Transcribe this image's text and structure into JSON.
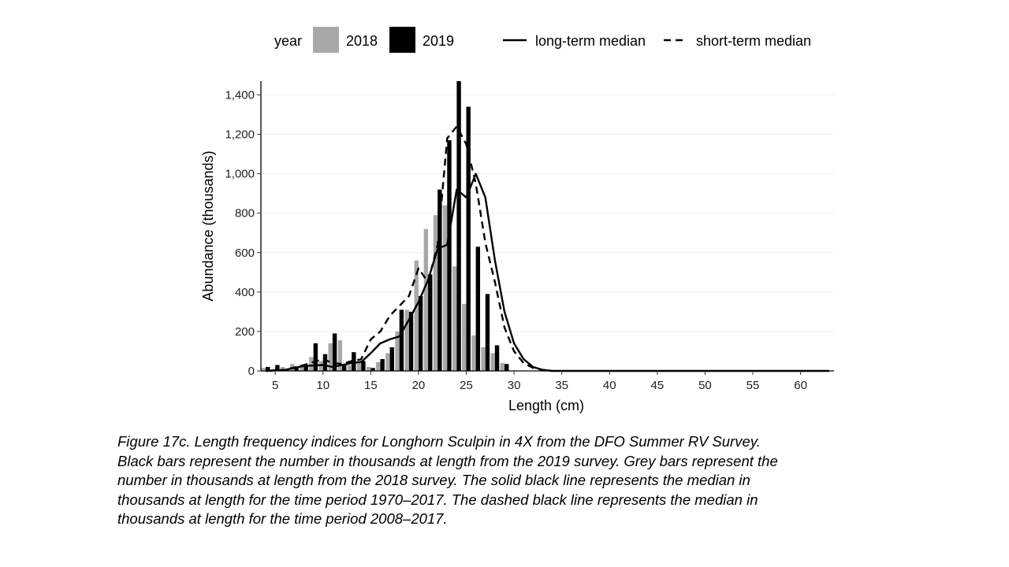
{
  "chart_data": {
    "type": "bar",
    "title": "",
    "xlabel": "Length (cm)",
    "ylabel": "Abundance (thousands)",
    "xlim": [
      3.5,
      63.5
    ],
    "ylim": [
      0,
      1470
    ],
    "x_ticks": [
      5,
      10,
      15,
      20,
      25,
      30,
      35,
      40,
      45,
      50,
      55,
      60
    ],
    "y_ticks": [
      0,
      200,
      400,
      600,
      800,
      1000,
      1200,
      1400
    ],
    "y_tick_labels": [
      "0",
      "200",
      "400",
      "600",
      "800",
      "1,000",
      "1,200",
      "1,400"
    ],
    "legend": {
      "position": "top",
      "title": "year",
      "items": [
        {
          "label": "2018",
          "kind": "bar",
          "color": "#a8a8a8"
        },
        {
          "label": "2019",
          "kind": "bar",
          "color": "#000000"
        },
        {
          "label": "long-term median",
          "kind": "solid-line",
          "color": "#000000"
        },
        {
          "label": "short-term median",
          "kind": "dashed-line",
          "color": "#000000"
        }
      ]
    },
    "bars": {
      "x": [
        4,
        5,
        6,
        7,
        8,
        9,
        10,
        11,
        12,
        13,
        14,
        15,
        16,
        17,
        18,
        19,
        20,
        21,
        22,
        23,
        24,
        25,
        26,
        27,
        28,
        29
      ],
      "series": [
        {
          "name": "2018",
          "color": "#a8a8a8",
          "values": [
            15,
            10,
            20,
            35,
            30,
            70,
            50,
            140,
            155,
            30,
            60,
            20,
            45,
            90,
            200,
            310,
            560,
            720,
            790,
            840,
            530,
            340,
            180,
            120,
            90,
            40
          ]
        },
        {
          "name": "2019",
          "color": "#000000",
          "values": [
            20,
            30,
            10,
            15,
            25,
            140,
            85,
            190,
            30,
            95,
            50,
            15,
            60,
            120,
            310,
            300,
            380,
            490,
            920,
            1170,
            1470,
            1340,
            630,
            390,
            130,
            35
          ]
        }
      ]
    },
    "lines": [
      {
        "name": "long-term median",
        "style": "solid",
        "color": "#000000",
        "x": [
          4,
          6,
          8,
          10,
          11,
          12,
          13,
          14,
          15,
          16,
          17,
          18,
          19,
          20,
          21,
          22,
          23,
          24,
          25,
          26,
          27,
          28,
          29,
          30,
          31,
          32,
          33,
          34,
          40,
          63
        ],
        "y": [
          0,
          5,
          25,
          30,
          20,
          30,
          40,
          45,
          90,
          140,
          160,
          175,
          260,
          350,
          460,
          620,
          640,
          920,
          880,
          1000,
          880,
          560,
          300,
          140,
          60,
          20,
          5,
          0,
          0,
          0
        ]
      },
      {
        "name": "short-term median",
        "style": "dashed",
        "color": "#000000",
        "x": [
          4,
          6,
          8,
          10,
          11,
          12,
          13,
          14,
          15,
          16,
          17,
          18,
          19,
          20,
          21,
          22,
          23,
          24,
          25,
          26,
          27,
          28,
          29,
          30,
          31,
          32,
          33,
          34
        ],
        "y": [
          0,
          5,
          30,
          60,
          40,
          35,
          50,
          60,
          160,
          200,
          280,
          330,
          380,
          520,
          450,
          640,
          1180,
          1240,
          1150,
          950,
          650,
          450,
          220,
          100,
          40,
          15,
          5,
          0
        ]
      }
    ]
  },
  "caption": {
    "lines": [
      "Figure 17c. Length frequency indices for Longhorn Sculpin in 4X from the DFO Summer RV Survey.",
      "Black bars represent the number in thousands at length from the 2019 survey. Grey bars represent the",
      "number in thousands at length from the 2018 survey. The solid black line represents the median in",
      "thousands at length for the time period 1970–2017. The dashed black line represents the median in",
      "thousands at length for the time period 2008–2017."
    ]
  }
}
